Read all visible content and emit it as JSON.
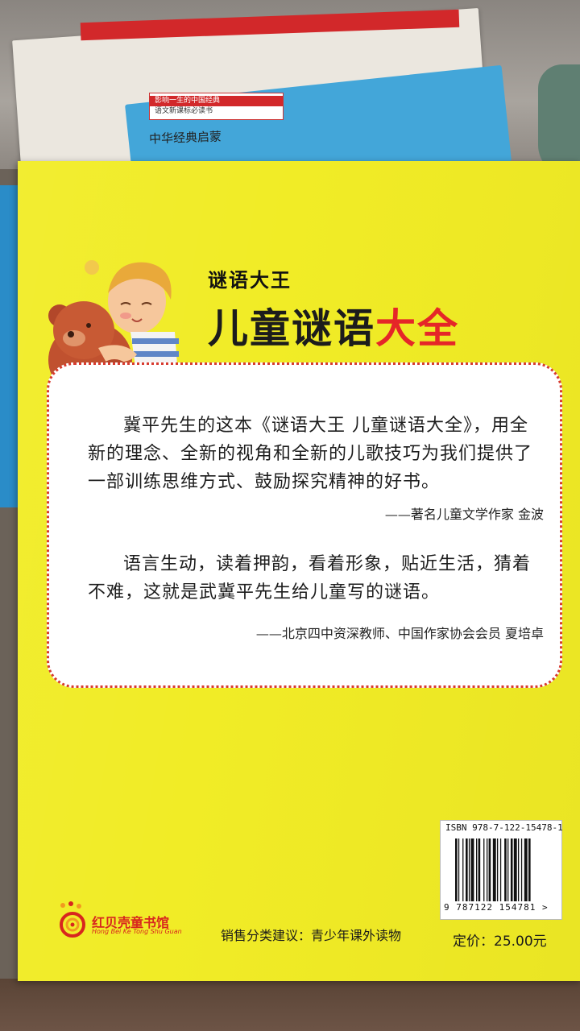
{
  "background": {
    "back_book_tag_line1": "影响一生的中国经典",
    "back_book_tag_line2": "语文新课标必读书",
    "back_book_title": "中华经典启蒙"
  },
  "cover": {
    "series_title": "谜语大王",
    "main_title_black": "儿童谜语",
    "main_title_red": "大全",
    "colors": {
      "cover_yellow": "#f1ec26",
      "title_red": "#e52628",
      "border_red": "#d73b2f"
    }
  },
  "quotes": [
    {
      "text": "冀平先生的这本《谜语大王 儿童谜语大全》，用全新的理念、全新的视角和全新的儿歌技巧为我们提供了一部训练思维方式、鼓励探究精神的好书。",
      "attribution": "——著名儿童文学作家 金波"
    },
    {
      "text": "语言生动，读着押韵，看着形象，贴近生活，猜着不难，这就是武冀平先生给儿童写的谜语。",
      "attribution": "——北京四中资深教师、中国作家协会会员 夏培卓"
    }
  ],
  "barcode": {
    "isbn_label": "ISBN 978-7-122-15478-1",
    "number": "9 787122 154781 >"
  },
  "publisher": {
    "name": "红贝壳童书馆",
    "pinyin": "Hong Bei Ke Tong Shu Guan"
  },
  "footer": {
    "category": "销售分类建议：青少年课外读物",
    "price": "定价：25.00元"
  }
}
